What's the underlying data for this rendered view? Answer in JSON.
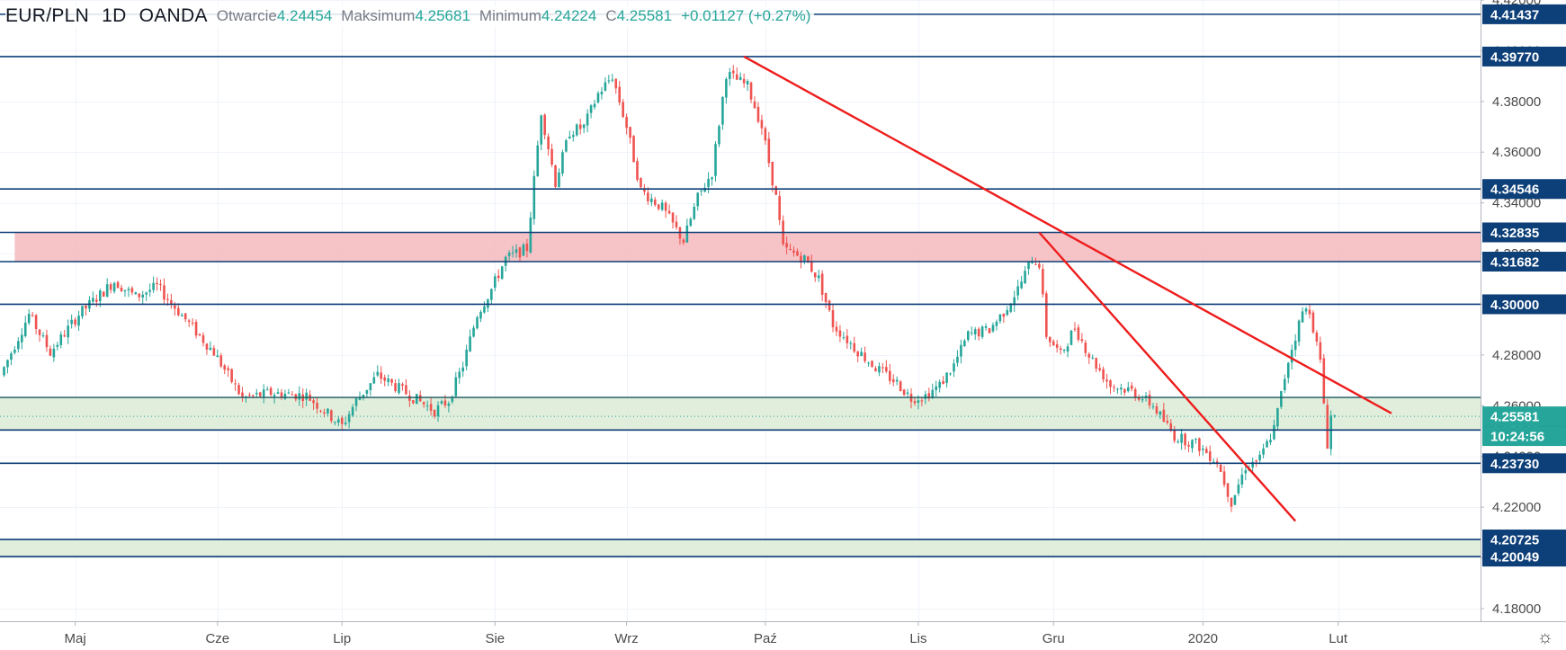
{
  "legend": {
    "symbol": "EUR/PLN",
    "interval": "1D",
    "source": "OANDA",
    "open_label": "Otwarcie",
    "open": "4.24454",
    "high_label": "Maksimum",
    "high": "4.25681",
    "low_label": "Minimum",
    "low": "4.24224",
    "close_label": "C",
    "close": "4.25581",
    "change": "+0.01127",
    "change_pct": "(+0.27%)"
  },
  "chart_data": {
    "type": "candlestick",
    "title": "EUR/PLN 1D OANDA",
    "xlabel": "",
    "ylabel": "",
    "ylim": [
      4.175,
      4.42
    ],
    "y_ticks": [
      "4.42000",
      "4.40000",
      "4.38000",
      "4.36000",
      "4.34000",
      "4.32000",
      "4.30000",
      "4.28000",
      "4.26000",
      "4.24000",
      "4.22000",
      "4.20000",
      "4.18000"
    ],
    "x_ticks": [
      "Maj",
      "Cze",
      "Lip",
      "Sie",
      "Wrz",
      "Paź",
      "Lis",
      "Gru",
      "2020",
      "Lut"
    ],
    "x_tick_index": [
      20,
      60,
      95,
      138,
      175,
      214,
      257,
      295,
      337,
      375
    ],
    "up_color": "#26a69a",
    "down_color": "#ef5350",
    "horizontal_levels": [
      {
        "label": "4.41437",
        "value": 4.41437,
        "color": "#0d3f78"
      },
      {
        "label": "4.39770",
        "value": 4.3977,
        "color": "#0d3f78"
      },
      {
        "label": "4.34546",
        "value": 4.34546,
        "color": "#0d3f78"
      },
      {
        "label": "4.32835",
        "value": 4.32835,
        "color": "#0d3f78"
      },
      {
        "label": "4.31682",
        "value": 4.31682,
        "color": "#0d3f78"
      },
      {
        "label": "4.30000",
        "value": 4.3,
        "color": "#0d3f78"
      },
      {
        "label": "4.25041",
        "value": 4.25041,
        "color": "#0d3f78"
      },
      {
        "label": "4.23730",
        "value": 4.2373,
        "color": "#0d3f78"
      },
      {
        "label": "4.20725",
        "value": 4.20725,
        "color": "#0d3f78"
      },
      {
        "label": "4.20049",
        "value": 4.20049,
        "color": "#0d3f78"
      }
    ],
    "zones": [
      {
        "from": 4.31682,
        "to": 4.32835,
        "color": "#f4b8bd",
        "x_start_index": 3
      },
      {
        "from": 4.25041,
        "to": 4.26327,
        "color": "#dcebd6",
        "x_start_index": 0
      },
      {
        "from": 4.20049,
        "to": 4.20725,
        "color": "#dcebd6",
        "x_start_index": 0
      }
    ],
    "zone_line": 4.26327,
    "trendlines": [
      {
        "x1": 208,
        "y1": 4.3977,
        "x2": 390,
        "y2": 4.257,
        "color": "#ee1c1c"
      },
      {
        "x1": 291,
        "y1": 4.3283,
        "x2": 363,
        "y2": 4.2145,
        "color": "#ee1c1c"
      }
    ],
    "current_price": {
      "label": "4.25581",
      "value": 4.25581,
      "color": "#26a69a"
    },
    "countdown": {
      "label": "10:24:56",
      "color": "#26a69a"
    },
    "anchors": [
      [
        0,
        4.272
      ],
      [
        8,
        4.296
      ],
      [
        14,
        4.281
      ],
      [
        22,
        4.296
      ],
      [
        32,
        4.309
      ],
      [
        38,
        4.303
      ],
      [
        44,
        4.307
      ],
      [
        52,
        4.294
      ],
      [
        60,
        4.281
      ],
      [
        68,
        4.263
      ],
      [
        76,
        4.265
      ],
      [
        86,
        4.264
      ],
      [
        96,
        4.252
      ],
      [
        100,
        4.262
      ],
      [
        106,
        4.272
      ],
      [
        114,
        4.265
      ],
      [
        122,
        4.258
      ],
      [
        126,
        4.262
      ],
      [
        130,
        4.276
      ],
      [
        134,
        4.296
      ],
      [
        138,
        4.306
      ],
      [
        142,
        4.318
      ],
      [
        148,
        4.322
      ],
      [
        152,
        4.376
      ],
      [
        156,
        4.348
      ],
      [
        160,
        4.368
      ],
      [
        164,
        4.37
      ],
      [
        168,
        4.383
      ],
      [
        172,
        4.39
      ],
      [
        176,
        4.37
      ],
      [
        180,
        4.345
      ],
      [
        186,
        4.338
      ],
      [
        192,
        4.325
      ],
      [
        196,
        4.342
      ],
      [
        200,
        4.352
      ],
      [
        204,
        4.391
      ],
      [
        210,
        4.386
      ],
      [
        214,
        4.37
      ],
      [
        218,
        4.342
      ],
      [
        220,
        4.322
      ],
      [
        226,
        4.318
      ],
      [
        230,
        4.31
      ],
      [
        234,
        4.292
      ],
      [
        240,
        4.283
      ],
      [
        246,
        4.275
      ],
      [
        252,
        4.269
      ],
      [
        256,
        4.263
      ],
      [
        260,
        4.264
      ],
      [
        264,
        4.268
      ],
      [
        268,
        4.276
      ],
      [
        272,
        4.288
      ],
      [
        278,
        4.29
      ],
      [
        282,
        4.297
      ],
      [
        286,
        4.306
      ],
      [
        290,
        4.318
      ],
      [
        292,
        4.316
      ],
      [
        294,
        4.288
      ],
      [
        298,
        4.28
      ],
      [
        302,
        4.291
      ],
      [
        306,
        4.28
      ],
      [
        312,
        4.268
      ],
      [
        318,
        4.266
      ],
      [
        324,
        4.26
      ],
      [
        330,
        4.248
      ],
      [
        336,
        4.245
      ],
      [
        342,
        4.238
      ],
      [
        346,
        4.222
      ],
      [
        350,
        4.236
      ],
      [
        354,
        4.239
      ],
      [
        358,
        4.251
      ],
      [
        362,
        4.278
      ],
      [
        366,
        4.297
      ],
      [
        368,
        4.298
      ],
      [
        371,
        4.277
      ],
      [
        373,
        4.245
      ],
      [
        374,
        4.256
      ]
    ],
    "candle_count": 375
  }
}
